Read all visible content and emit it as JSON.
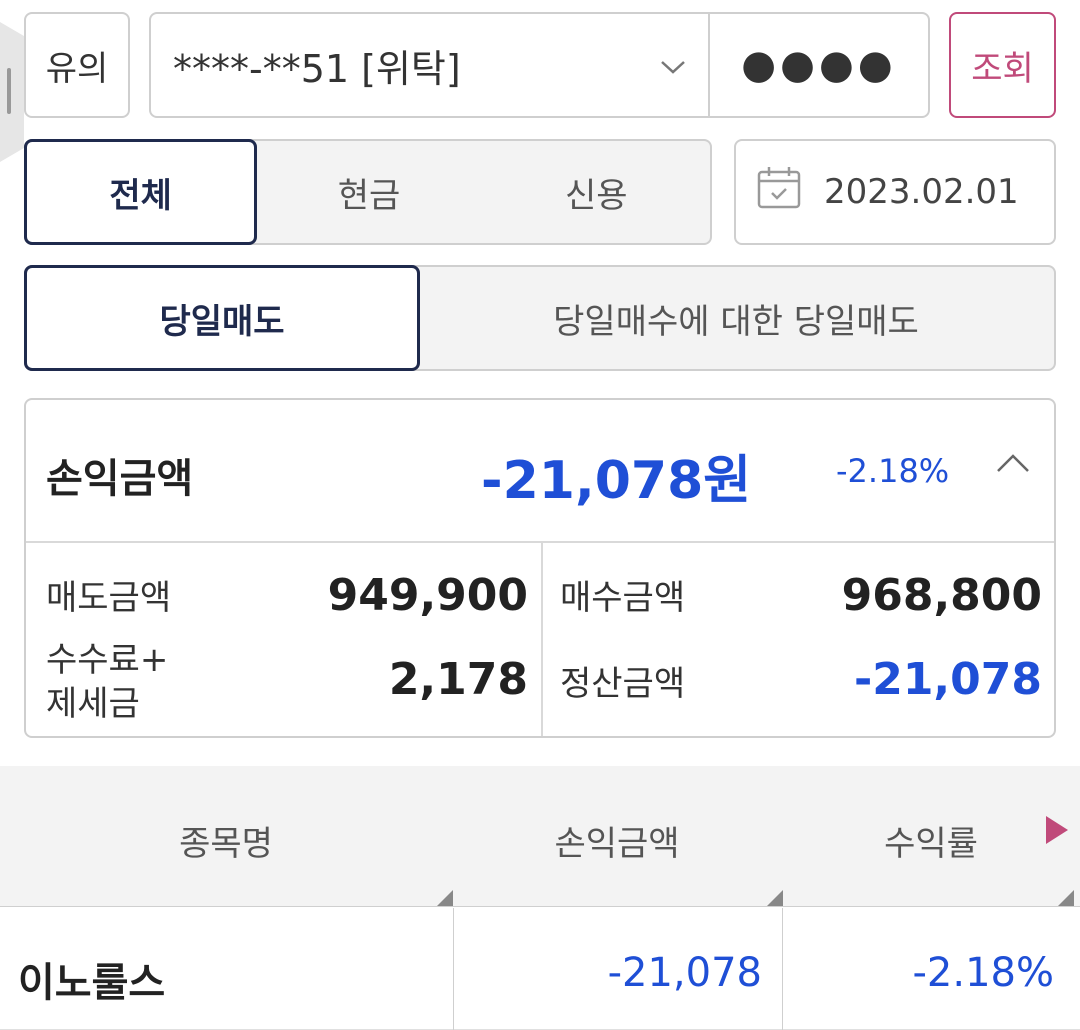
{
  "top_bar": {
    "warning_label": "유의",
    "account_value": "****-**51 [위탁]",
    "password_mask": "●●●●",
    "query_label": "조회"
  },
  "credit_tabs": [
    "전체",
    "현금",
    "신용"
  ],
  "date_field": {
    "value": "2023.02.01"
  },
  "trade_tabs": [
    "당일매도",
    "당일매수에 대한 당일매도"
  ],
  "summary": {
    "title": "손익금액",
    "amount": "-21,078원",
    "rate": "-2.18%",
    "sell_label": "매도금액",
    "sell_value": "949,900",
    "buy_label": "매수금액",
    "buy_value": "968,800",
    "fee_label_line1": "수수료+",
    "fee_label_line2": "제세금",
    "fee_value": "2,178",
    "settle_label": "정산금액",
    "settle_value": "-21,078"
  },
  "table": {
    "headers": [
      "종목명",
      "손익금액",
      "수익률"
    ],
    "rows": [
      {
        "name": "이노룰스",
        "pl": "-21,078",
        "rate": "-2.18%"
      }
    ]
  },
  "colors": {
    "negative_blue": "#1f4fd6",
    "accent_pink": "#c04a7a",
    "active_navy": "#1f2a4d"
  }
}
